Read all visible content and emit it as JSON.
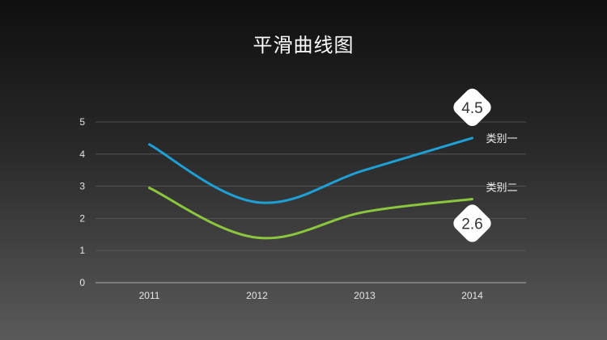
{
  "chart_data": {
    "type": "line",
    "title": "平滑曲线图",
    "categories": [
      "2011",
      "2012",
      "2013",
      "2014"
    ],
    "series": [
      {
        "name": "类别一",
        "values": [
          4.3,
          2.5,
          3.5,
          4.5
        ],
        "color": "#1e9fd6"
      },
      {
        "name": "类别二",
        "values": [
          2.95,
          1.4,
          2.2,
          2.6
        ],
        "color": "#8cc63f"
      }
    ],
    "ylim": [
      0,
      5
    ],
    "yticks": [
      0,
      1,
      2,
      3,
      4,
      5
    ],
    "grid": true,
    "smooth": true,
    "legend": "series labels at right end",
    "callouts": [
      {
        "series": "类别一",
        "category": "2014",
        "label": "4.5"
      },
      {
        "series": "类别二",
        "category": "2014",
        "label": "2.6"
      }
    ]
  }
}
